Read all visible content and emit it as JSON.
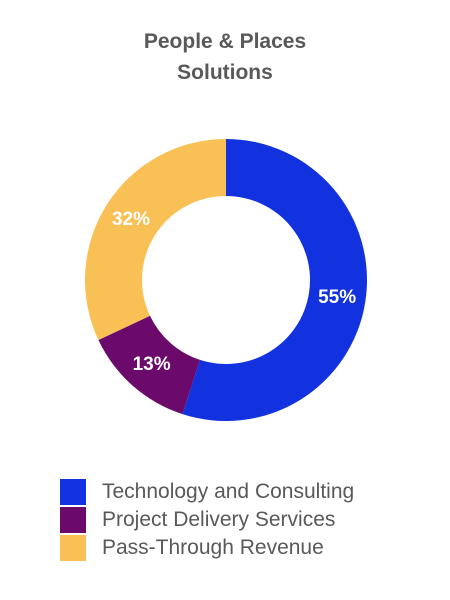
{
  "chart_data": {
    "type": "pie",
    "variant": "donut",
    "title": [
      "People & Places",
      "Solutions"
    ],
    "categories": [
      "Technology and Consulting",
      "Project Delivery Services",
      "Pass-Through Revenue"
    ],
    "values": [
      55,
      13,
      32
    ],
    "labels": [
      "55%",
      "13%",
      "32%"
    ],
    "colors": [
      "#1232E0",
      "#6B0A6B",
      "#F9C155"
    ],
    "start_angle_deg": 0,
    "direction": "clockwise",
    "legend_position": "bottom"
  }
}
